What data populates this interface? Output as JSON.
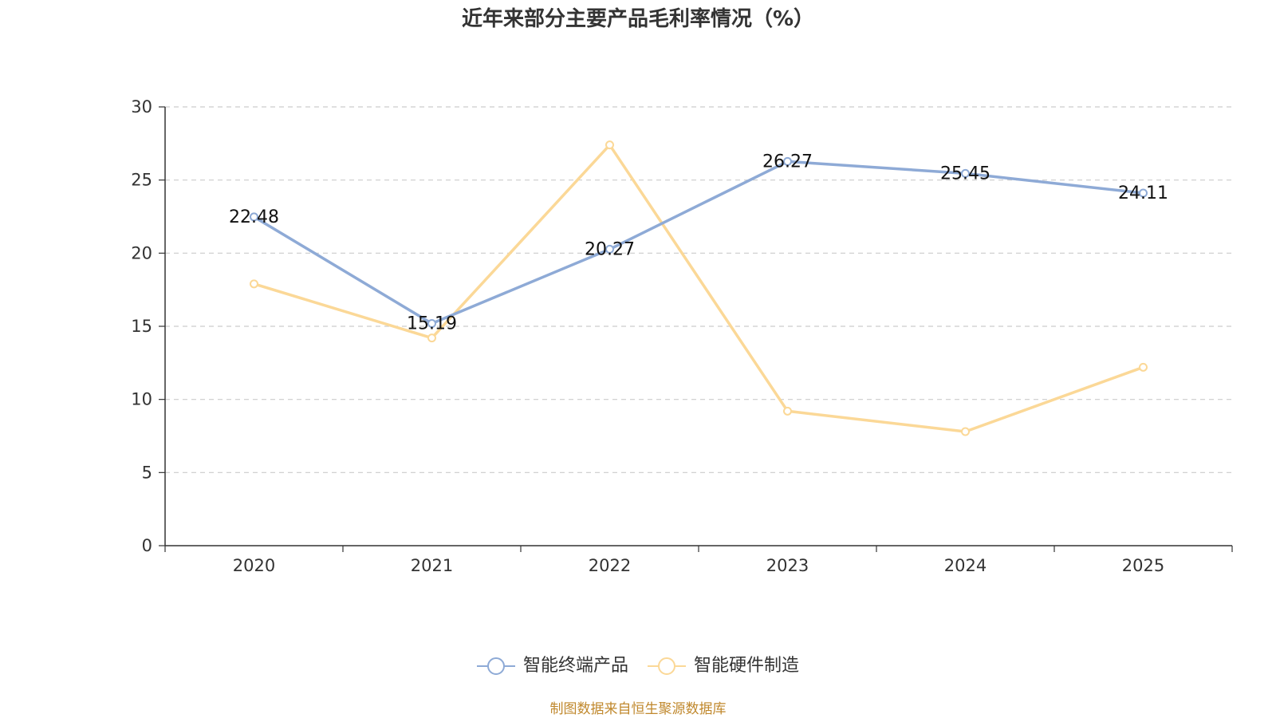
{
  "chart_data": {
    "type": "line",
    "title": "近年来部分主要产品毛利率情况（%）",
    "categories": [
      "2020",
      "2021",
      "2022",
      "2023",
      "2024",
      "2025"
    ],
    "ylim": [
      0,
      30
    ],
    "yticks": [
      0,
      5,
      10,
      15,
      20,
      25,
      30
    ],
    "grid": true,
    "legend_position": "bottom",
    "xlabel": "",
    "ylabel": "",
    "series": [
      {
        "name": "智能终端产品",
        "values": [
          22.48,
          15.19,
          20.27,
          26.27,
          25.45,
          24.11
        ],
        "labels": [
          "22.48",
          "15.19",
          "20.27",
          "26.27",
          "25.45",
          "24.11"
        ],
        "color": "#8eaad6",
        "show_labels": true
      },
      {
        "name": "智能硬件制造",
        "values": [
          17.9,
          14.2,
          27.4,
          9.2,
          7.8,
          12.2
        ],
        "color": "#fbd897",
        "show_labels": false
      }
    ]
  },
  "source_note": "制图数据来自恒生聚源数据库"
}
